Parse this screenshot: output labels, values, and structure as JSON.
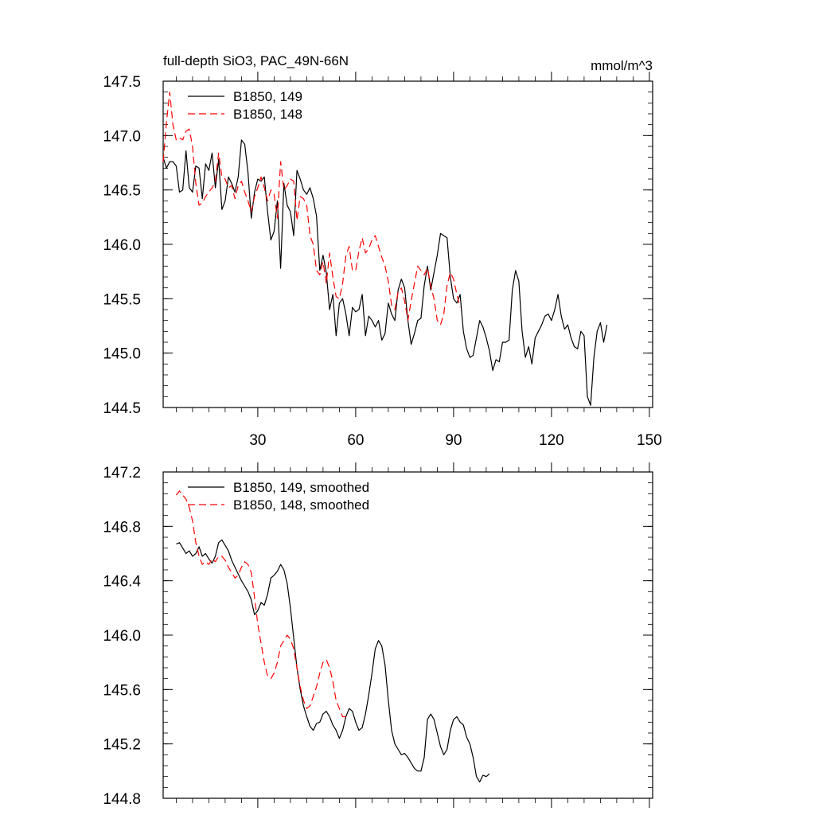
{
  "chart_data": [
    {
      "type": "line",
      "title": "full-depth SiO3, PAC_49N-66N",
      "units": "mmol/m^3",
      "xlim": [
        1,
        151
      ],
      "ylim": [
        144.5,
        147.5
      ],
      "xticks": [
        30,
        60,
        90,
        120,
        150
      ],
      "xtick_labels": [
        "30",
        "60",
        "90",
        "120",
        "150"
      ],
      "yticks": [
        144.5,
        145.0,
        145.5,
        146.0,
        146.5,
        147.0,
        147.5
      ],
      "ytick_labels": [
        "144.5",
        "145.0",
        "145.5",
        "146.0",
        "146.5",
        "147.0",
        "147.5"
      ],
      "legend_position": "top-left",
      "series": [
        {
          "name": "B1850, 149",
          "color": "#000000",
          "dash": "solid",
          "x_start": 1,
          "values": [
            146.8,
            146.7,
            146.76,
            146.76,
            146.72,
            146.48,
            146.5,
            146.86,
            146.52,
            146.48,
            146.72,
            146.7,
            146.42,
            146.74,
            146.68,
            146.84,
            146.52,
            146.78,
            146.32,
            146.4,
            146.62,
            146.56,
            146.48,
            146.62,
            146.96,
            146.92,
            146.66,
            146.24,
            146.48,
            146.6,
            146.58,
            146.62,
            146.3,
            146.04,
            146.12,
            146.4,
            145.78,
            146.56,
            146.36,
            146.3,
            146.08,
            146.68,
            146.6,
            146.5,
            146.46,
            146.52,
            146.42,
            146.26,
            145.76,
            145.9,
            145.74,
            145.4,
            145.54,
            145.16,
            145.46,
            145.5,
            145.36,
            145.16,
            145.42,
            145.38,
            145.4,
            145.54,
            145.16,
            145.34,
            145.3,
            145.24,
            145.3,
            145.12,
            145.18,
            145.46,
            145.36,
            145.3,
            145.58,
            145.68,
            145.6,
            145.3,
            145.08,
            145.18,
            145.3,
            145.32,
            145.62,
            145.8,
            145.58,
            145.74,
            145.9,
            146.1,
            146.08,
            146.06,
            145.7,
            145.5,
            145.46,
            145.54,
            145.2,
            145.04,
            144.96,
            144.98,
            145.14,
            145.3,
            145.24,
            145.14,
            145.02,
            144.84,
            144.94,
            144.92,
            145.1,
            145.1,
            145.12,
            145.58,
            145.76,
            145.66,
            145.2,
            144.96,
            145.06,
            144.9,
            145.14,
            145.2,
            145.26,
            145.34,
            145.36,
            145.3,
            145.4,
            145.54,
            145.34,
            145.22,
            145.26,
            145.14,
            145.06,
            145.04,
            145.2,
            145.16,
            144.6,
            144.52,
            144.96,
            145.2,
            145.28,
            145.1,
            145.26
          ]
        },
        {
          "name": "B1850, 148",
          "color": "#ff0000",
          "dash": "dashed",
          "x_start": 1,
          "values": [
            146.76,
            147.12,
            147.4,
            147.1,
            146.96,
            146.98,
            146.96,
            147.04,
            147.06,
            146.9,
            146.56,
            146.36,
            146.38,
            146.44,
            146.48,
            146.52,
            146.58,
            146.84,
            146.62,
            146.6,
            146.52,
            146.54,
            146.42,
            146.54,
            146.58,
            146.48,
            146.4,
            146.3,
            146.44,
            146.52,
            146.62,
            146.52,
            146.4,
            146.5,
            146.46,
            146.24,
            146.76,
            146.5,
            146.54,
            146.6,
            146.58,
            146.22,
            146.44,
            146.42,
            146.36,
            146.08,
            146.0,
            145.76,
            145.72,
            145.84,
            145.64,
            145.92,
            145.7,
            145.52,
            145.5,
            145.64,
            145.9,
            145.98,
            145.76,
            145.76,
            145.94,
            146.06,
            145.92,
            145.96,
            146.04,
            146.08,
            145.98,
            145.88,
            145.8,
            145.66,
            145.44,
            145.4,
            145.56,
            145.6,
            145.48,
            145.3,
            145.48,
            145.64,
            145.8,
            145.76,
            145.72,
            145.78,
            145.62,
            145.5,
            145.3,
            145.26,
            145.36,
            145.62,
            145.74,
            145.68,
            145.54,
            145.42
          ]
        }
      ]
    },
    {
      "type": "line",
      "title": "",
      "xlim": [
        1,
        151
      ],
      "ylim": [
        144.8,
        147.2
      ],
      "xticks": [
        30,
        60,
        90,
        120,
        150
      ],
      "yticks": [
        144.8,
        145.2,
        145.6,
        146.0,
        146.4,
        146.8,
        147.2
      ],
      "ytick_labels": [
        "144.8",
        "145.2",
        "145.6",
        "146.0",
        "146.4",
        "146.8",
        "147.2"
      ],
      "legend_position": "top-left",
      "series": [
        {
          "name": "B1850, 149, smoothed",
          "color": "#000000",
          "dash": "solid",
          "x_start": 5,
          "values": [
            146.67,
            146.68,
            146.64,
            146.6,
            146.62,
            146.58,
            146.6,
            146.65,
            146.58,
            146.6,
            146.56,
            146.53,
            146.58,
            146.68,
            146.7,
            146.66,
            146.62,
            146.55,
            146.5,
            146.45,
            146.4,
            146.36,
            146.32,
            146.26,
            146.15,
            146.18,
            146.24,
            146.22,
            146.3,
            146.42,
            146.44,
            146.47,
            146.52,
            146.48,
            146.38,
            146.2,
            145.98,
            145.76,
            145.6,
            145.48,
            145.4,
            145.33,
            145.3,
            145.35,
            145.36,
            145.42,
            145.44,
            145.4,
            145.34,
            145.3,
            145.24,
            145.3,
            145.4,
            145.46,
            145.44,
            145.36,
            145.3,
            145.32,
            145.42,
            145.56,
            145.72,
            145.9,
            145.96,
            145.92,
            145.78,
            145.52,
            145.3,
            145.2,
            145.16,
            145.12,
            145.13,
            145.1,
            145.06,
            145.02,
            145.0,
            145.0,
            145.1,
            145.38,
            145.42,
            145.38,
            145.28,
            145.18,
            145.12,
            145.16,
            145.3,
            145.38,
            145.4,
            145.36,
            145.34,
            145.25,
            145.2,
            145.1,
            144.96,
            144.92,
            144.97,
            144.96,
            144.98
          ]
        },
        {
          "name": "B1850, 148, smoothed",
          "color": "#ff0000",
          "dash": "dashed",
          "x_start": 5,
          "values": [
            147.03,
            147.06,
            147.03,
            147.0,
            146.94,
            146.84,
            146.68,
            146.58,
            146.52,
            146.54,
            146.52,
            146.56,
            146.54,
            146.58,
            146.58,
            146.55,
            146.5,
            146.46,
            146.42,
            146.44,
            146.5,
            146.54,
            146.52,
            146.46,
            146.28,
            146.08,
            145.94,
            145.8,
            145.7,
            145.68,
            145.72,
            145.8,
            145.92,
            145.96,
            146.0,
            145.97,
            145.9,
            145.76,
            145.62,
            145.52,
            145.46,
            145.48,
            145.55,
            145.62,
            145.72,
            145.8,
            145.82,
            145.76,
            145.66,
            145.52,
            145.46,
            145.4,
            145.4
          ]
        }
      ]
    }
  ]
}
